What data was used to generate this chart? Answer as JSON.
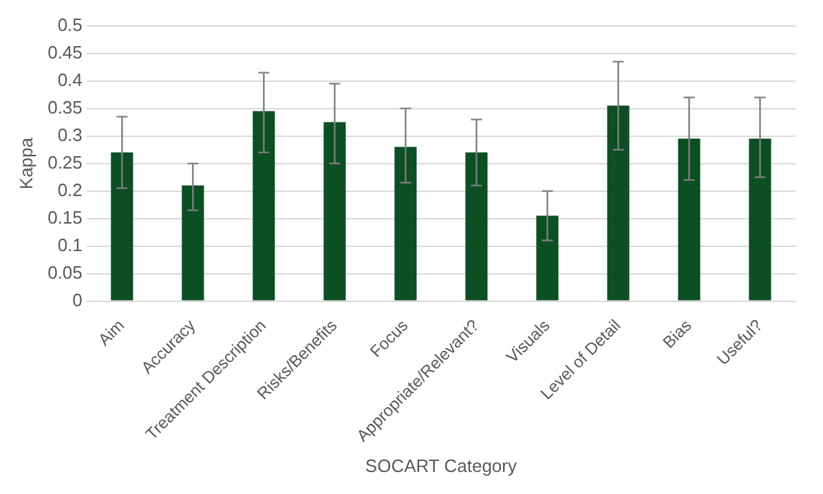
{
  "chart_data": {
    "type": "bar",
    "xlabel": "SOCART Category",
    "ylabel": "Kappa",
    "categories": [
      "Aim",
      "Accuracy",
      "Treatment Description",
      "Risks/Benefits",
      "Focus",
      "Appropriate/Relevant?",
      "Visuals",
      "Level of Detail",
      "Bias",
      "Useful?"
    ],
    "series": [
      {
        "color": "#0b4f23",
        "values": [
          0.27,
          0.21,
          0.345,
          0.325,
          0.28,
          0.27,
          0.155,
          0.355,
          0.295,
          0.295
        ],
        "errors": [
          [
            0.205,
            0.335
          ],
          [
            0.165,
            0.25
          ],
          [
            0.27,
            0.415
          ],
          [
            0.25,
            0.395
          ],
          [
            0.215,
            0.35
          ],
          [
            0.21,
            0.33
          ],
          [
            0.11,
            0.2
          ],
          [
            0.275,
            0.435
          ],
          [
            0.22,
            0.37
          ],
          [
            0.225,
            0.37
          ]
        ]
      }
    ],
    "ylim": [
      0,
      0.5
    ],
    "yticks": [
      0,
      0.05,
      0.1,
      0.15,
      0.2,
      0.25,
      0.3,
      0.35,
      0.4,
      0.45,
      0.5
    ],
    "grid": "y",
    "legend": false
  }
}
